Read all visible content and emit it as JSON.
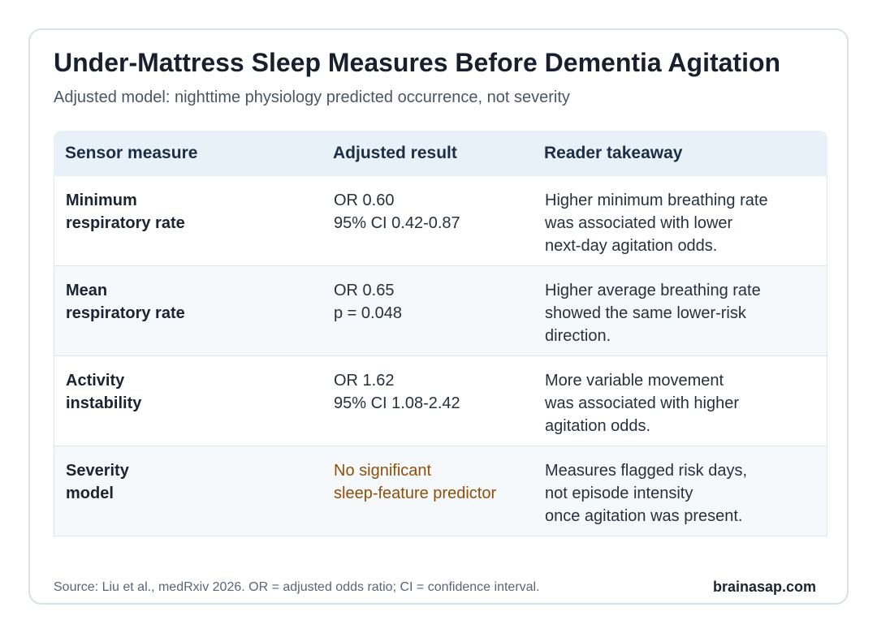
{
  "header": {
    "title": "Under-Mattress Sleep Measures Before Dementia Agitation",
    "subtitle": "Adjusted model: nighttime physiology predicted occurrence, not severity"
  },
  "table": {
    "columns": [
      "Sensor measure",
      "Adjusted result",
      "Reader takeaway"
    ],
    "rows": [
      {
        "measure": "Minimum\nrespiratory rate",
        "result": "OR 0.60\n95% CI 0.42-0.87",
        "takeaway": "Higher minimum breathing rate\nwas associated with lower\nnext-day agitation odds."
      },
      {
        "measure": "Mean\nrespiratory rate",
        "result": "OR 0.65\np = 0.048",
        "takeaway": "Higher average breathing rate\nshowed the same lower-risk\ndirection."
      },
      {
        "measure": "Activity\ninstability",
        "result": "OR 1.62\n95% CI 1.08-2.42",
        "takeaway": "More variable movement\nwas associated with higher\nagitation odds."
      },
      {
        "measure": "Severity\nmodel",
        "result": "No significant\nsleep-feature predictor",
        "takeaway": "Measures flagged risk days,\nnot episode intensity\nonce agitation was present."
      }
    ]
  },
  "colors": {
    "header_band": "#e9f1f8",
    "alt_row": "#f6f9fc",
    "warn_text": "#8f4f07"
  },
  "footer": {
    "source": "Source: Liu et al., medRxiv 2026. OR = adjusted odds ratio; CI = confidence interval.",
    "brand": "brainasap.com"
  }
}
